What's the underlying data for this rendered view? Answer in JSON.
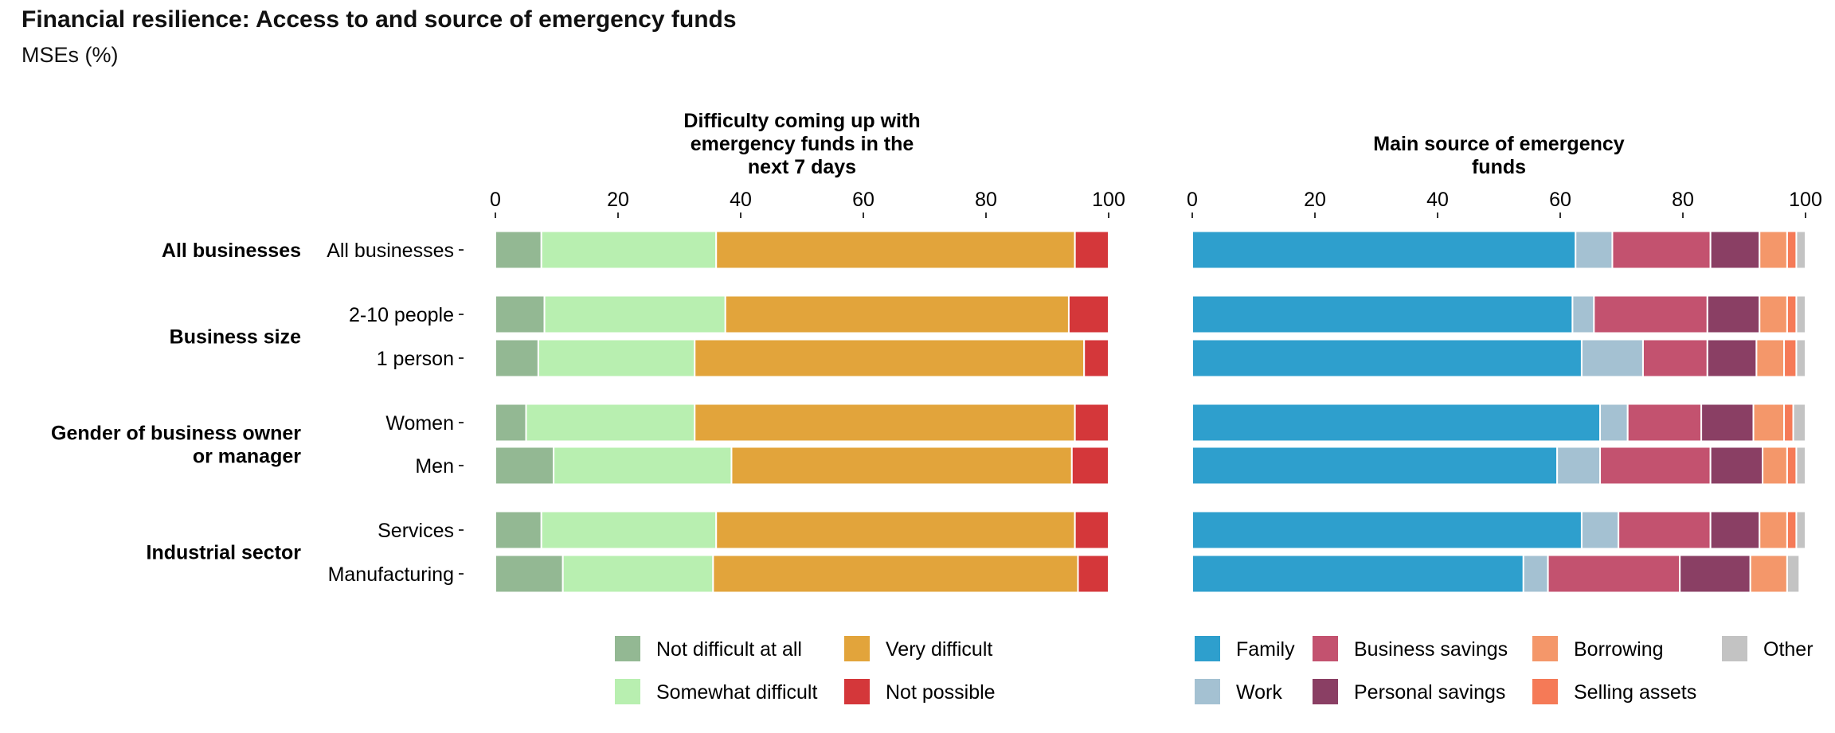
{
  "title": "Financial resilience: Access to and source of emergency funds",
  "subtitle": "MSEs (%)",
  "groups": [
    {
      "label": "All businesses",
      "rows": [
        0
      ]
    },
    {
      "label": "Business size",
      "rows": [
        1,
        2
      ]
    },
    {
      "label": "Gender of business owner or manager",
      "label_lines": [
        "Gender of business owner",
        "or manager"
      ],
      "rows": [
        3,
        4
      ]
    },
    {
      "label": "Industrial sector",
      "rows": [
        5,
        6
      ]
    }
  ],
  "categories": [
    "All businesses",
    "2-10 people",
    "1 person",
    "Women",
    "Men",
    "Services",
    "Manufacturing"
  ],
  "chart_data": [
    {
      "type": "bar",
      "orientation": "horizontal",
      "stacked": true,
      "title": "Difficulty coming up with emergency funds in the next 7 days",
      "title_lines": [
        "Difficulty coming up with",
        "emergency funds in the",
        "next 7 days"
      ],
      "categories": [
        "All businesses",
        "2-10 people",
        "1 person",
        "Women",
        "Men",
        "Services",
        "Manufacturing"
      ],
      "xlim": [
        0,
        100
      ],
      "xticks": [
        "0",
        "20",
        "40",
        "60",
        "80",
        "100"
      ],
      "legend_position": "bottom",
      "series": [
        {
          "name": "Not difficult at all",
          "color": "#93b893",
          "values": [
            7.5,
            8,
            7,
            5,
            9.5,
            7.5,
            11
          ]
        },
        {
          "name": "Somewhat difficult",
          "color": "#b8efb0",
          "values": [
            28.5,
            29.5,
            25.5,
            27.5,
            29,
            28.5,
            24.5
          ]
        },
        {
          "name": "Very difficult",
          "color": "#e2a43b",
          "values": [
            58.5,
            56,
            63.5,
            62,
            55.5,
            58.5,
            59.5
          ]
        },
        {
          "name": "Not possible",
          "color": "#d4373a",
          "values": [
            5.5,
            6.5,
            4,
            5.5,
            6,
            5.5,
            5
          ]
        }
      ]
    },
    {
      "type": "bar",
      "orientation": "horizontal",
      "stacked": true,
      "title": "Main source of emergency funds",
      "title_lines": [
        "Main source of emergency",
        "funds"
      ],
      "categories": [
        "All businesses",
        "2-10 people",
        "1 person",
        "Women",
        "Men",
        "Services",
        "Manufacturing"
      ],
      "xlim": [
        0,
        100
      ],
      "xticks": [
        "0",
        "20",
        "40",
        "60",
        "80",
        "100"
      ],
      "legend_position": "bottom",
      "series": [
        {
          "name": "Family",
          "color": "#2e9fcd",
          "values": [
            62.5,
            62,
            63.5,
            66.5,
            59.5,
            63.5,
            54
          ]
        },
        {
          "name": "Work",
          "color": "#a4c1d2",
          "values": [
            6,
            3.5,
            10,
            4.5,
            7,
            6,
            4
          ]
        },
        {
          "name": "Business savings",
          "color": "#c3526f",
          "values": [
            16,
            18.5,
            10.5,
            12,
            18,
            15,
            21.5
          ]
        },
        {
          "name": "Personal savings",
          "color": "#8a3f64",
          "values": [
            8,
            8.5,
            8,
            8.5,
            8.5,
            8,
            11.5
          ]
        },
        {
          "name": "Borrowing",
          "color": "#f4976a",
          "values": [
            4.5,
            4.5,
            4.5,
            5,
            4,
            4.5,
            6
          ]
        },
        {
          "name": "Selling assets",
          "color": "#f57a57",
          "values": [
            1.5,
            1.5,
            2,
            1.5,
            1.5,
            1.5,
            0
          ]
        },
        {
          "name": "Other",
          "color": "#c3c3c3",
          "values": [
            1.5,
            1.5,
            1.5,
            2,
            1.5,
            1.5,
            2
          ]
        }
      ]
    }
  ]
}
